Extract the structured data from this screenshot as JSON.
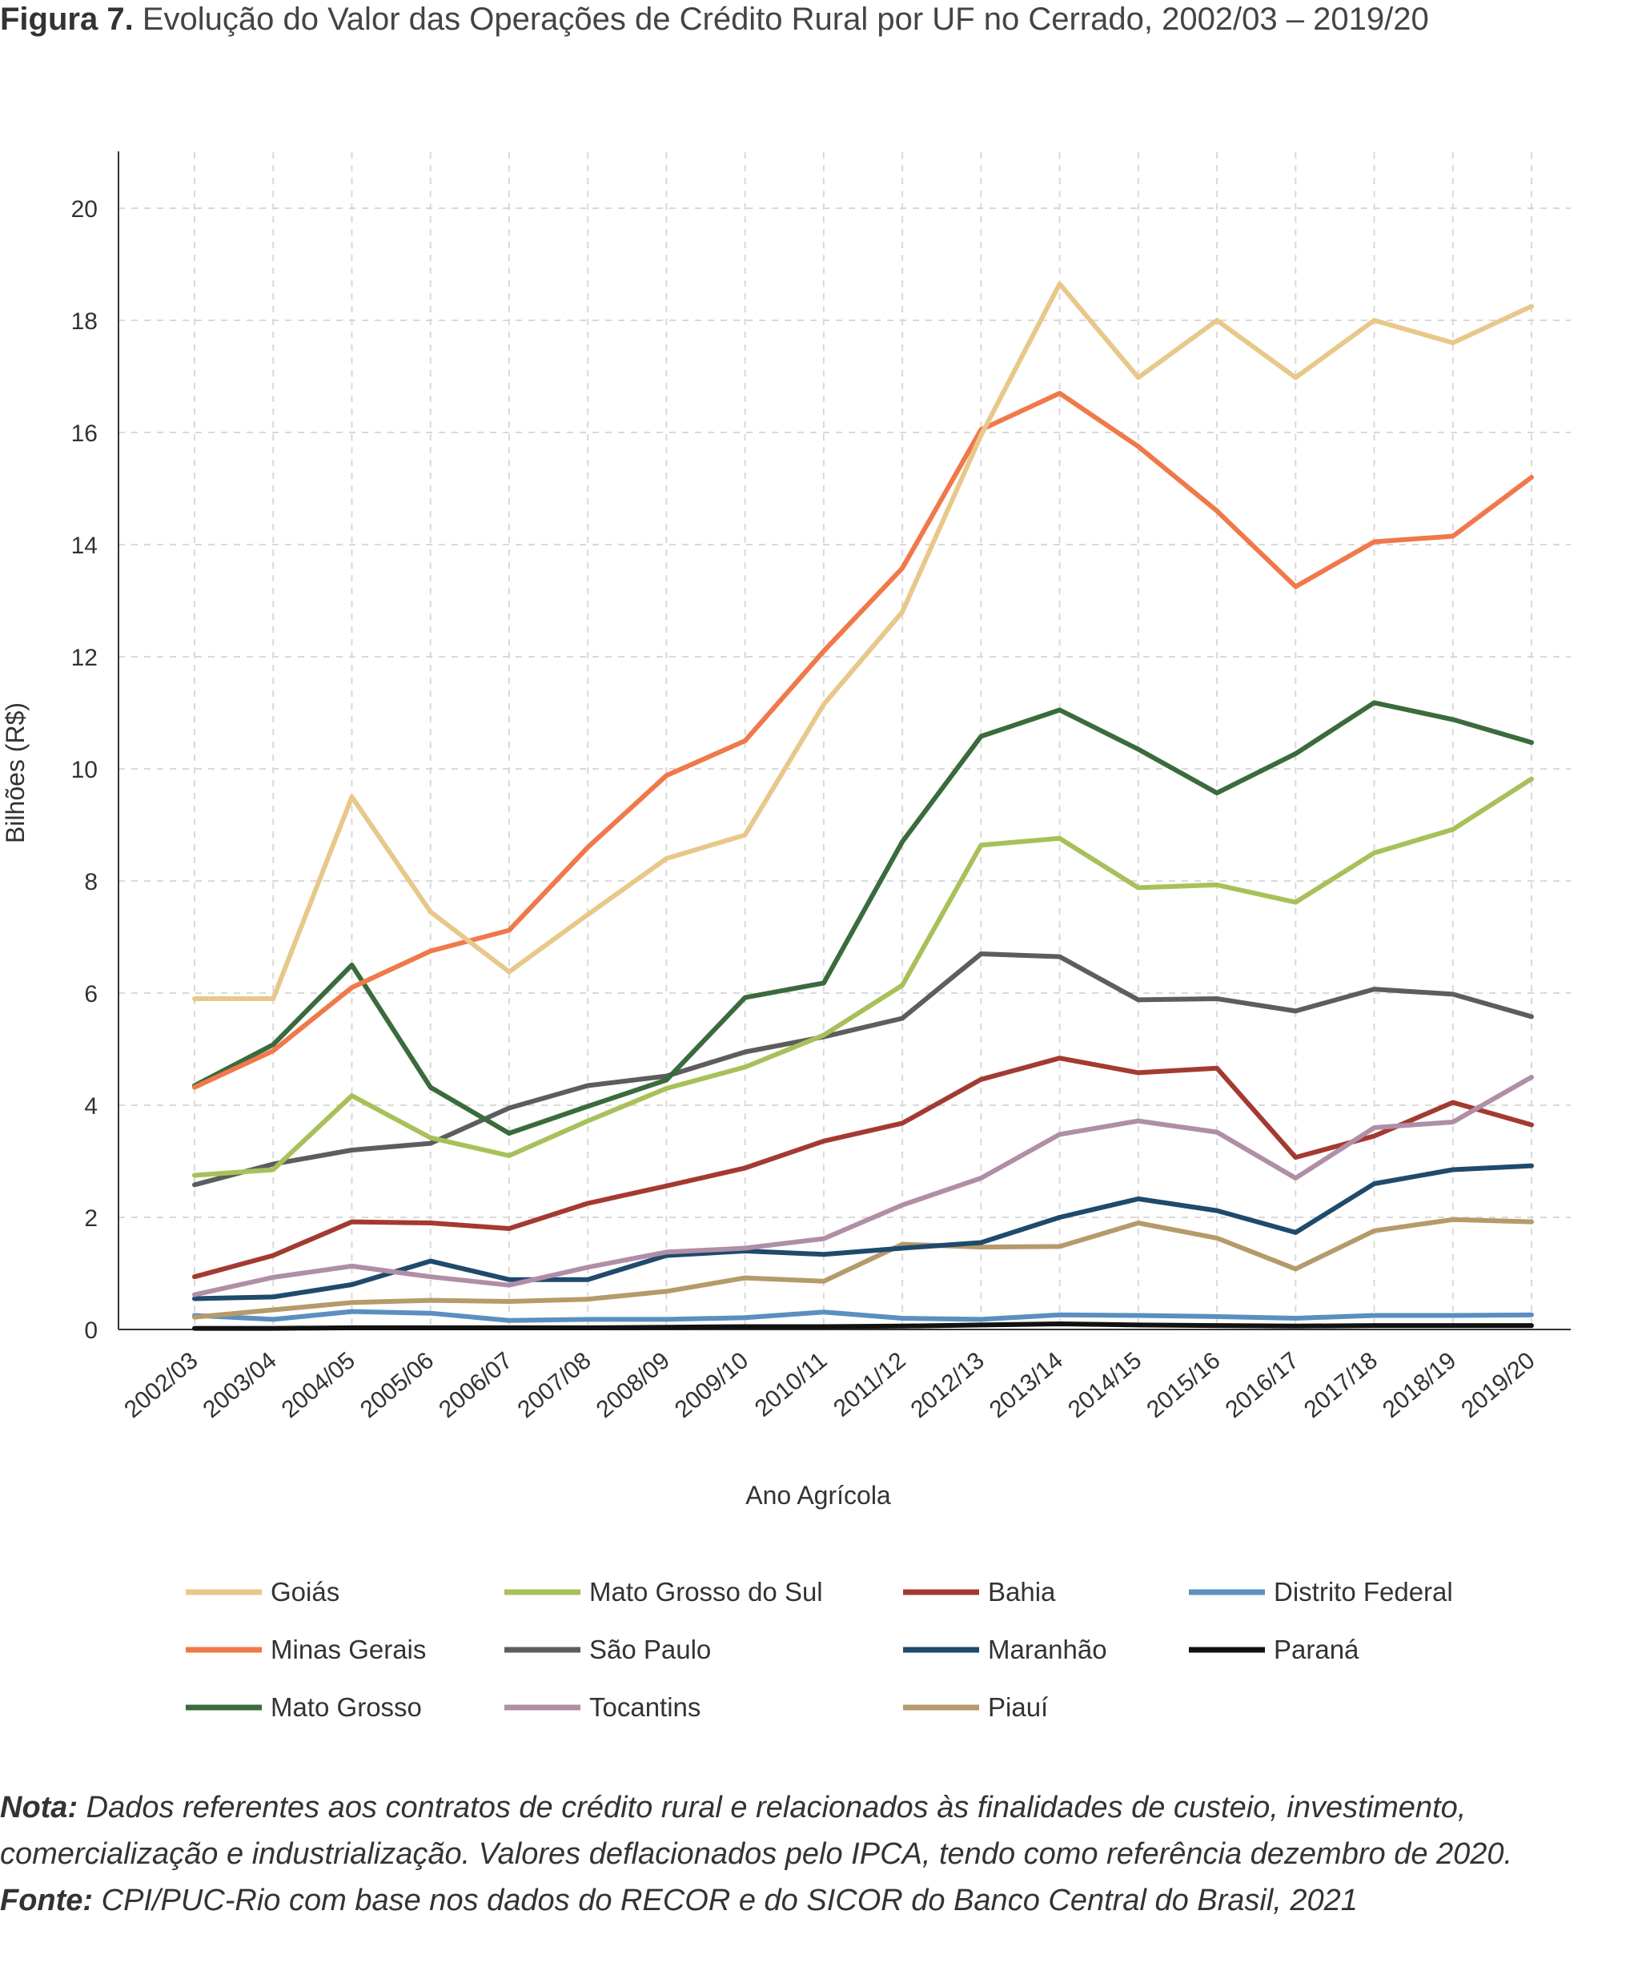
{
  "figure": {
    "label": "Figura 7.",
    "title": "Evolução do Valor das Operações de Crédito Rural por UF no Cerrado, 2002/03 – 2019/20"
  },
  "chart_data": {
    "type": "line",
    "xlabel": "Ano Agrícola",
    "ylabel": "Bilhões (R$)",
    "ylim": [
      0,
      21
    ],
    "yticks": [
      0,
      2,
      4,
      6,
      8,
      10,
      12,
      14,
      16,
      18,
      20
    ],
    "grid": true,
    "legend_position": "bottom",
    "categories": [
      "2002/03",
      "2003/04",
      "2004/05",
      "2005/06",
      "2006/07",
      "2007/08",
      "2008/09",
      "2009/10",
      "2010/11",
      "2011/12",
      "2012/13",
      "2013/14",
      "2014/15",
      "2015/16",
      "2016/17",
      "2017/18",
      "2018/19",
      "2019/20"
    ],
    "series": [
      {
        "name": "Goiás",
        "color": "#e8c88a",
        "values": [
          5.9,
          5.9,
          9.5,
          7.45,
          6.38,
          7.4,
          8.4,
          8.82,
          11.15,
          12.8,
          15.95,
          18.65,
          16.98,
          18.0,
          16.98,
          18.0,
          17.6,
          18.25
        ]
      },
      {
        "name": "Minas Gerais",
        "color": "#f0784a",
        "values": [
          4.32,
          4.97,
          6.1,
          6.75,
          7.12,
          8.6,
          9.88,
          10.5,
          12.1,
          13.58,
          16.05,
          16.7,
          15.75,
          14.6,
          13.25,
          14.05,
          14.15,
          15.2
        ]
      },
      {
        "name": "Mato Grosso",
        "color": "#3a6b3c",
        "values": [
          4.35,
          5.08,
          6.5,
          4.32,
          3.5,
          3.98,
          4.45,
          5.92,
          6.18,
          8.7,
          10.58,
          11.05,
          10.35,
          9.57,
          10.27,
          11.18,
          10.88,
          10.47
        ]
      },
      {
        "name": "Mato Grosso do Sul",
        "color": "#a8c05a",
        "values": [
          2.75,
          2.85,
          4.17,
          3.42,
          3.1,
          3.72,
          4.3,
          4.68,
          5.25,
          6.14,
          8.64,
          8.76,
          7.88,
          7.93,
          7.62,
          8.5,
          8.92,
          9.82
        ]
      },
      {
        "name": "São Paulo",
        "color": "#5d5d5d",
        "values": [
          2.58,
          2.95,
          3.2,
          3.32,
          3.95,
          4.35,
          4.52,
          4.95,
          5.22,
          5.55,
          6.7,
          6.65,
          5.88,
          5.9,
          5.68,
          6.07,
          5.98,
          5.58
        ]
      },
      {
        "name": "Tocantins",
        "color": "#b08ea6",
        "values": [
          0.62,
          0.93,
          1.13,
          0.94,
          0.79,
          1.11,
          1.38,
          1.45,
          1.62,
          2.22,
          2.7,
          3.48,
          3.72,
          3.52,
          2.7,
          3.6,
          3.7,
          4.5
        ]
      },
      {
        "name": "Bahia",
        "color": "#a33a32",
        "values": [
          0.94,
          1.32,
          1.92,
          1.9,
          1.8,
          2.25,
          2.56,
          2.88,
          3.36,
          3.68,
          4.46,
          4.84,
          4.58,
          4.66,
          3.07,
          3.45,
          4.05,
          3.65
        ]
      },
      {
        "name": "Maranhão",
        "color": "#1f4a6b",
        "values": [
          0.55,
          0.58,
          0.8,
          1.22,
          0.89,
          0.89,
          1.32,
          1.4,
          1.34,
          1.45,
          1.55,
          2.0,
          2.33,
          2.12,
          1.73,
          2.6,
          2.85,
          2.92
        ]
      },
      {
        "name": "Piauí",
        "color": "#b59a6a",
        "values": [
          0.22,
          0.35,
          0.48,
          0.52,
          0.5,
          0.54,
          0.68,
          0.92,
          0.86,
          1.52,
          1.47,
          1.48,
          1.9,
          1.63,
          1.08,
          1.76,
          1.96,
          1.92
        ]
      },
      {
        "name": "Distrito Federal",
        "color": "#5a8fc0",
        "values": [
          0.25,
          0.18,
          0.32,
          0.29,
          0.16,
          0.18,
          0.18,
          0.21,
          0.31,
          0.2,
          0.18,
          0.26,
          0.25,
          0.23,
          0.2,
          0.25,
          0.25,
          0.26
        ]
      },
      {
        "name": "Paraná",
        "color": "#111111",
        "values": [
          0.02,
          0.02,
          0.03,
          0.03,
          0.03,
          0.03,
          0.04,
          0.05,
          0.05,
          0.06,
          0.08,
          0.1,
          0.08,
          0.07,
          0.06,
          0.07,
          0.07,
          0.07
        ]
      }
    ],
    "legend_order": [
      "Goiás",
      "Mato Grosso do Sul",
      "Bahia",
      "Distrito Federal",
      "Minas Gerais",
      "São Paulo",
      "Maranhão",
      "Paraná",
      "Mato Grosso",
      "Tocantins",
      "Piauí"
    ]
  },
  "notes": {
    "nota_label": "Nota:",
    "nota_text": " Dados referentes aos contratos de crédito rural e relacionados às finalidades de custeio, investimento, comercialização e industrialização. Valores deflacionados pelo IPCA, tendo como referência dezembro de 2020.",
    "fonte_label": "Fonte:",
    "fonte_text": " CPI/PUC-Rio com base nos dados do RECOR e do SICOR do Banco Central do Brasil, 2021"
  }
}
